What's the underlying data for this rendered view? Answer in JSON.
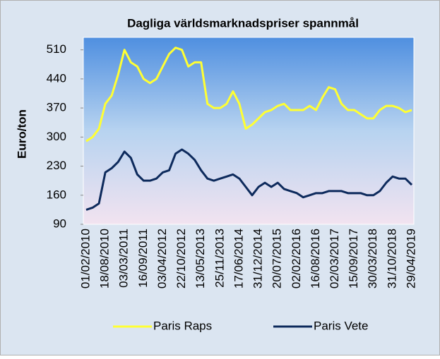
{
  "chart_data": {
    "type": "line",
    "title": "Dagliga världsmarknadspriser spannmål",
    "y_label": "Euro/ton",
    "categories": [
      "01/02/2010",
      null,
      null,
      "18/08/2010",
      null,
      null,
      "03/03/2011",
      null,
      null,
      "16/09/2011",
      null,
      null,
      "03/04/2012",
      null,
      null,
      "22/10/2012",
      null,
      null,
      "13/05/2013",
      null,
      null,
      "25/11/2013",
      null,
      null,
      "17/06/2014",
      null,
      null,
      "31/12/2014",
      null,
      null,
      "20/07/2015",
      null,
      null,
      "02/02/2016",
      null,
      null,
      "16/08/2016",
      null,
      null,
      "02/03/2017",
      null,
      null,
      "15/09/2017",
      null,
      null,
      "30/03/2018",
      null,
      null,
      "31/10/2018",
      null,
      null,
      "29/04/2019"
    ],
    "series": [
      {
        "name": "Paris Raps",
        "color": "#ffff33",
        "values": [
          290,
          300,
          320,
          380,
          400,
          450,
          510,
          480,
          470,
          440,
          430,
          440,
          470,
          500,
          515,
          510,
          470,
          480,
          480,
          380,
          370,
          370,
          380,
          410,
          380,
          320,
          330,
          345,
          360,
          365,
          375,
          380,
          365,
          365,
          365,
          375,
          365,
          395,
          420,
          415,
          380,
          365,
          365,
          355,
          345,
          345,
          365,
          375,
          375,
          370,
          360,
          365
        ]
      },
      {
        "name": "Paris Vete",
        "color": "#0d2a5c",
        "values": [
          125,
          130,
          140,
          215,
          225,
          240,
          265,
          250,
          210,
          195,
          195,
          200,
          215,
          220,
          260,
          270,
          260,
          245,
          220,
          200,
          195,
          200,
          205,
          210,
          200,
          180,
          160,
          180,
          190,
          180,
          190,
          175,
          170,
          165,
          155,
          160,
          165,
          165,
          170,
          170,
          170,
          165,
          165,
          165,
          160,
          160,
          170,
          190,
          205,
          200,
          200,
          185
        ]
      }
    ],
    "ylim": [
      90,
      540
    ],
    "yticks": [
      90,
      160,
      230,
      300,
      370,
      440,
      510
    ]
  }
}
